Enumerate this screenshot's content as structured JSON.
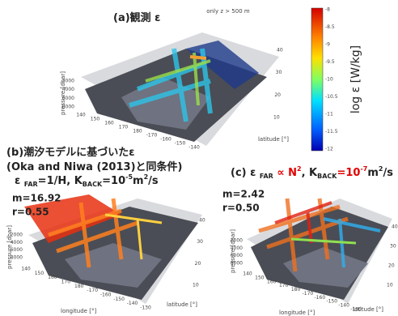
{
  "colorbar": {
    "ticks": [
      "-8",
      "-8.5",
      "-9",
      "-9.5",
      "-10",
      "-10.5",
      "-11",
      "-11.5",
      "-12"
    ],
    "label": "log ε [W/kg]"
  },
  "panels": [
    {
      "title_lines": [
        [
          {
            "text": "(a)観測 ε",
            "style": "normal"
          }
        ]
      ],
      "note": "only z > 500 m",
      "pressure_label": "pressure [dbar]",
      "pressure_ticks": [
        "2000",
        "4000",
        "6000",
        "8000"
      ],
      "longitude_ticks": [
        "140",
        "150",
        "160",
        "170",
        "180",
        "-170",
        "-160",
        "-150",
        "-140"
      ],
      "latitude_label": "latitude [°]",
      "latitude_ticks": [
        "10",
        "20",
        "30",
        "40"
      ]
    },
    {
      "title_lines": [
        [
          {
            "text": "(b)潮汐モデルに基づいたε",
            "style": "normal"
          }
        ],
        [
          {
            "text": "(Oka and Niwa (2013)と同条件)",
            "style": "normal"
          }
        ],
        [
          {
            "text": "ε ",
            "style": "normal"
          },
          {
            "text": "FAR",
            "style": "sub"
          },
          {
            "text": "=1/H, K",
            "style": "normal"
          },
          {
            "text": "BACK",
            "style": "sub"
          },
          {
            "text": "=10",
            "style": "normal"
          },
          {
            "text": "-5",
            "style": "sup"
          },
          {
            "text": "m",
            "style": "normal"
          },
          {
            "text": "2",
            "style": "sup"
          },
          {
            "text": "/s",
            "style": "normal"
          }
        ]
      ],
      "stats": [
        "m=16.92",
        "r=0.55"
      ],
      "pressure_label": "pressure [dbar]",
      "pressure_ticks": [
        "2000",
        "4000",
        "6000",
        "8000"
      ],
      "longitude_label": "longitude [°]",
      "longitude_ticks": [
        "140",
        "150",
        "160",
        "170",
        "180",
        "-170",
        "-160",
        "-150",
        "-140",
        "-130"
      ],
      "latitude_label": "latitude [°]",
      "latitude_ticks": [
        "10",
        "20",
        "30",
        "40"
      ]
    },
    {
      "title_lines": [
        [
          {
            "text": "(c) ε ",
            "style": "normal"
          },
          {
            "text": "FAR",
            "style": "sub"
          },
          {
            "text": " ∝ N",
            "style": "red"
          },
          {
            "text": "2",
            "style": "redsup"
          },
          {
            "text": ", K",
            "style": "normal"
          },
          {
            "text": "BACK",
            "style": "sub"
          },
          {
            "text": "=10",
            "style": "red"
          },
          {
            "text": "-7",
            "style": "redsup"
          },
          {
            "text": "m",
            "style": "normal"
          },
          {
            "text": "2",
            "style": "sup"
          },
          {
            "text": "/s",
            "style": "normal"
          }
        ]
      ],
      "stats": [
        "m=2.42",
        "r=0.50"
      ],
      "pressure_label": "pressure [dbar]",
      "pressure_ticks": [
        "2000",
        "4000",
        "6000",
        "8000"
      ],
      "longitude_label": "longitude [°]",
      "longitude_ticks": [
        "140",
        "150",
        "160",
        "170",
        "180",
        "-170",
        "-160",
        "-150",
        "-140",
        "-130"
      ],
      "latitude_label": "latitude [°]",
      "latitude_ticks": [
        "10",
        "20",
        "30",
        "40"
      ]
    }
  ]
}
